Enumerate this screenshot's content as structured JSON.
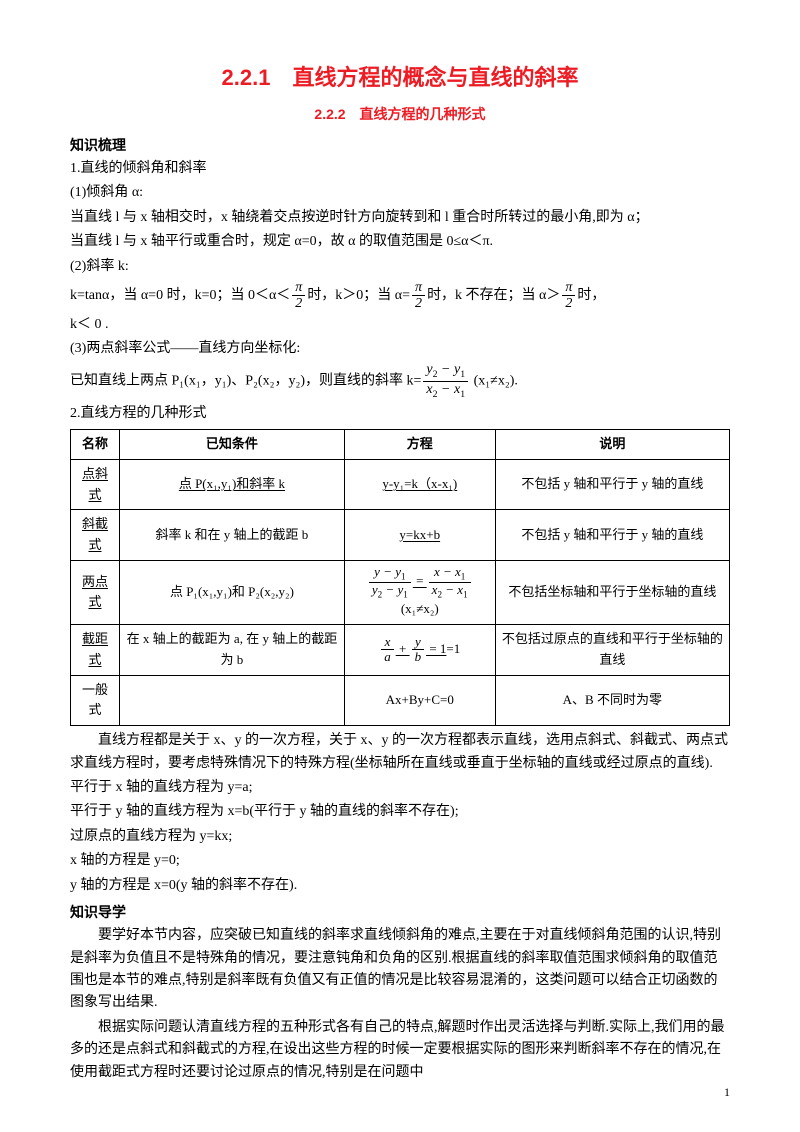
{
  "title": "2.2.1　直线方程的概念与直线的斜率",
  "subtitle": "2.2.2　直线方程的几种形式",
  "headings": {
    "h1": "知识梳理",
    "h2": "知识导学"
  },
  "section1": {
    "p1": "1.直线的倾斜角和斜率",
    "p2": "(1)倾斜角 α:",
    "p3": "当直线 l 与 x 轴相交时，x 轴绕着交点按逆时针方向旋转到和 l 重合时所转过的最小角,即为 α；",
    "p4": "当直线 l 与 x 轴平行或重合时，规定 α=0，故 α 的取值范围是 0≤α＜π.",
    "p5": "(2)斜率 k:",
    "p6a": "k=tanα，当 α=0 时，k=0；当 0＜α＜",
    "p6b": "时，k＞0；当 α=",
    "p6c": "时，k 不存在；当 α＞",
    "p6d": "时，",
    "p7": "k＜ 0 .",
    "p8": "(3)两点斜率公式——直线方向坐标化:",
    "p9a": "已知直线上两点 P₁(x₁，y₁)、P₂(x₂，y₂)，则直线的斜率 k=",
    "p9b": " (x₁≠x₂)."
  },
  "section2": {
    "title": "2.直线方程的几种形式",
    "table": {
      "headers": [
        "名称",
        "已知条件",
        "方程",
        "说明"
      ],
      "rows": [
        {
          "name": "点斜式",
          "cond": "点 P(x₁,y₁)和斜率 k",
          "eq": "y-y₁=k（x-x₁)",
          "note": "不包括 y 轴和平行于 y 轴的直线"
        },
        {
          "name": "斜截式",
          "cond": "斜率 k 和在 y 轴上的截距 b",
          "eq": "y=kx+b",
          "note": "不包括 y 轴和平行于 y 轴的直线"
        },
        {
          "name": "两点式",
          "cond": "点 P₁(x₁,y₁)和 P₂(x₂,y₂)",
          "eq_suffix": " (x₁≠x₂)",
          "note": "不包括坐标轴和平行于坐标轴的直线"
        },
        {
          "name": "截距式",
          "cond": "在 x 轴上的截距为 a, 在 y 轴上的截距为 b",
          "eq_suffix": "=1",
          "note": "不包括过原点的直线和平行于坐标轴的直线"
        },
        {
          "name": "一般式",
          "cond": "",
          "eq": "Ax+By+C=0",
          "note": "A、B 不同时为零"
        }
      ]
    },
    "after1": "直线方程都是关于 x、y 的一次方程，关于 x、y 的一次方程都表示直线，选用点斜式、斜截式、两点式求直线方程时，要考虑特殊情况下的特殊方程(坐标轴所在直线或垂直于坐标轴的直线或经过原点的直线).",
    "after2": "平行于 x 轴的直线方程为 y=a;",
    "after3": "平行于 y 轴的直线方程为 x=b(平行于 y 轴的直线的斜率不存在);",
    "after4": "过原点的直线方程为 y=kx;",
    "after5": "x 轴的方程是 y=0;",
    "after6": "y 轴的方程是 x=0(y 轴的斜率不存在)."
  },
  "section3": {
    "p1": "要学好本节内容，应突破已知直线的斜率求直线倾斜角的难点,主要在于对直线倾斜角范围的认识,特别是斜率为负值且不是特殊角的情况，要注意钝角和负角的区别.根据直线的斜率取值范围求倾斜角的取值范围也是本节的难点,特别是斜率既有负值又有正值的情况是比较容易混淆的，这类问题可以结合正切函数的图象写出结果.",
    "p2": "根据实际问题认清直线方程的五种形式各有自己的特点,解题时作出灵活选择与判断.实际上,我们用的最多的还是点斜式和斜截式的方程,在设出这些方程的时候一定要根据实际的图形来判断斜率不存在的情况,在使用截距式方程时还要讨论过原点的情况,特别是在问题中"
  },
  "pageNumber": "1",
  "colors": {
    "title": "#ed1c24",
    "text": "#000000",
    "background": "#ffffff",
    "border": "#000000"
  },
  "fonts": {
    "body": "SimSun",
    "heading": "SimHei",
    "math": "Times New Roman",
    "body_size": 14,
    "title_size": 22,
    "subtitle_size": 14
  }
}
